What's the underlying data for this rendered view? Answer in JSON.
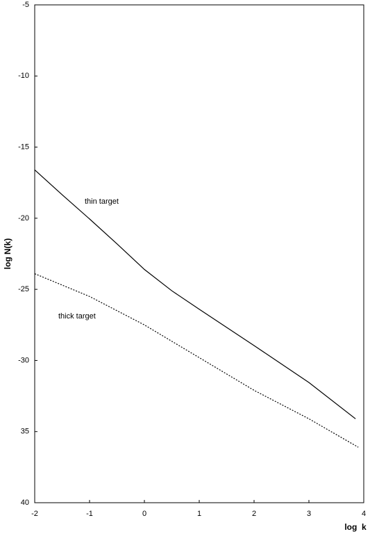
{
  "chart_data": {
    "type": "line",
    "x_label": "log  k",
    "y_label": "log N(k)",
    "xlim": [
      -2,
      4
    ],
    "ylim": [
      -40,
      -5
    ],
    "xticks": [
      -2,
      -1,
      0,
      1,
      2,
      3,
      4
    ],
    "yticks": [
      -5,
      -10,
      -15,
      -20,
      -25,
      -30,
      {
        "value": -35,
        "label": "35"
      },
      {
        "value": -40,
        "label": "40"
      }
    ],
    "grid": false,
    "annotations": [
      "thin target",
      "thick target"
    ],
    "series": [
      {
        "name": "thin target",
        "color": "#000000",
        "dash": "solid",
        "x": [
          -2,
          -1.5,
          -1,
          -0.5,
          0,
          0.5,
          1,
          2,
          3,
          3.85
        ],
        "values": [
          -16.6,
          -18.35,
          -20.05,
          -21.8,
          -23.6,
          -25.1,
          -26.4,
          -28.95,
          -31.55,
          -34.1
        ]
      },
      {
        "name": "thick target",
        "color": "#000000",
        "dash": "dashed",
        "x": [
          -2,
          -1,
          0,
          1,
          2,
          3,
          3.9
        ],
        "values": [
          -23.9,
          -25.5,
          -27.5,
          -29.8,
          -32.1,
          -34.1,
          -36.1
        ]
      }
    ]
  }
}
